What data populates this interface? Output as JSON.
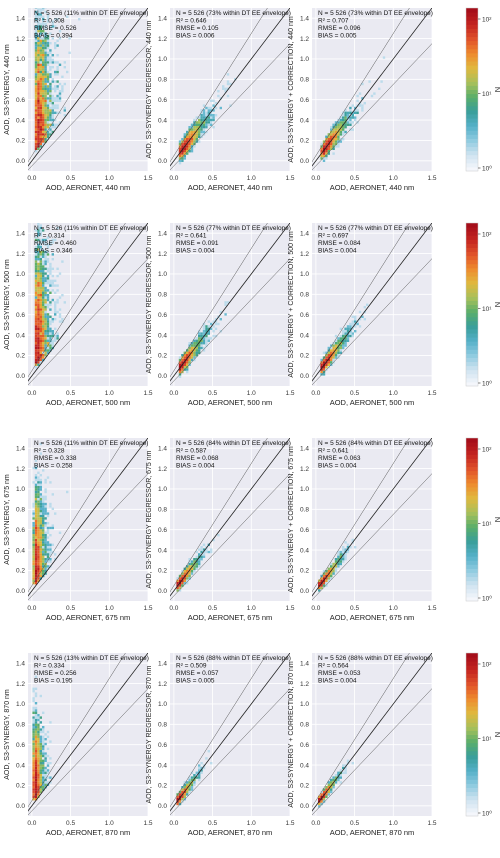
{
  "figure": {
    "colormap": [
      "#f4f6fb",
      "#cfe3f0",
      "#8fcbe0",
      "#55b0c8",
      "#3a9e9a",
      "#5aae6a",
      "#a9c05a",
      "#e0b83e",
      "#ee8a2e",
      "#e0522a",
      "#c42420",
      "#a50e1a"
    ],
    "grid_on": true,
    "plot_bg": "#eaeaf2",
    "colorbar": {
      "label": "N",
      "ticks": [
        "10⁰",
        "10¹",
        "10²"
      ]
    }
  },
  "chart_data": [
    {
      "type": "scatter",
      "row": 0,
      "col": 0,
      "xlabel": "AOD, AERONET, 440 nm",
      "ylabel": "AOD, S3-SYNERGY, 440 nm",
      "stats": [
        "N = 5 526 (11% within DT EE envelope)",
        "R² = 0.308",
        "RMSE = 0.526",
        "BIAS = 0.394"
      ],
      "xlim": [
        -0.05,
        1.5
      ],
      "ylim": [
        -0.1,
        1.5
      ],
      "xticks": [
        0.0,
        0.5,
        1.0,
        1.5
      ],
      "yticks": [
        0.0,
        0.2,
        0.4,
        0.6,
        0.8,
        1.0,
        1.2,
        1.4
      ],
      "cloud": {
        "mx": 0.08,
        "sx": 0.07,
        "slope": 3.0,
        "base": 0.2,
        "sy": 0.35
      }
    },
    {
      "type": "scatter",
      "row": 0,
      "col": 1,
      "xlabel": "AOD, AERONET, 440 nm",
      "ylabel": "AOD, S3-SYNERGY REGRESSOR, 440 nm",
      "stats": [
        "N = 5 526 (73% within DT EE envelope)",
        "R² = 0.646",
        "RMSE = 0.105",
        "BIAS = 0.006"
      ],
      "xlim": [
        -0.05,
        1.5
      ],
      "ylim": [
        -0.1,
        1.5
      ],
      "xticks": [
        0.0,
        0.5,
        1.0,
        1.5
      ],
      "yticks": [
        0.0,
        0.2,
        0.4,
        0.6,
        0.8,
        1.0,
        1.2,
        1.4
      ],
      "cloud": {
        "mx": 0.12,
        "sx": 0.1,
        "slope": 0.95,
        "base": 0.01,
        "sy": 0.06
      }
    },
    {
      "type": "scatter",
      "row": 0,
      "col": 2,
      "xlabel": "AOD, AERONET, 440 nm",
      "ylabel": "AOD, S3-SYNERGY + CORRECTION, 440 nm",
      "stats": [
        "N = 5 526 (73% within DT EE envelope)",
        "R² = 0.707",
        "RMSE = 0.096",
        "BIAS = 0.005"
      ],
      "xlim": [
        -0.05,
        1.5
      ],
      "ylim": [
        -0.1,
        1.5
      ],
      "xticks": [
        0.0,
        0.5,
        1.0,
        1.5
      ],
      "yticks": [
        0.0,
        0.2,
        0.4,
        0.6,
        0.8,
        1.0,
        1.2,
        1.4
      ],
      "cloud": {
        "mx": 0.12,
        "sx": 0.1,
        "slope": 0.97,
        "base": 0.01,
        "sy": 0.055
      }
    },
    {
      "type": "scatter",
      "row": 1,
      "col": 0,
      "xlabel": "AOD, AERONET, 500 nm",
      "ylabel": "AOD, S3-SYNERGY, 500 nm",
      "stats": [
        "N = 5 526 (11% within DT EE envelope)",
        "R² = 0.314",
        "RMSE = 0.460",
        "BIAS = 0.346"
      ],
      "xlim": [
        -0.05,
        1.5
      ],
      "ylim": [
        -0.1,
        1.5
      ],
      "xticks": [
        0.0,
        0.5,
        1.0,
        1.5
      ],
      "yticks": [
        0.0,
        0.2,
        0.4,
        0.6,
        0.8,
        1.0,
        1.2,
        1.4
      ],
      "cloud": {
        "mx": 0.07,
        "sx": 0.06,
        "slope": 3.0,
        "base": 0.18,
        "sy": 0.32
      }
    },
    {
      "type": "scatter",
      "row": 1,
      "col": 1,
      "xlabel": "AOD, AERONET, 500 nm",
      "ylabel": "AOD, S3-SYNERGY REGRESSOR, 500 nm",
      "stats": [
        "N = 5 526 (77% within DT EE envelope)",
        "R² = 0.641",
        "RMSE = 0.091",
        "BIAS = 0.004"
      ],
      "xlim": [
        -0.05,
        1.5
      ],
      "ylim": [
        -0.1,
        1.5
      ],
      "xticks": [
        0.0,
        0.5,
        1.0,
        1.5
      ],
      "yticks": [
        0.0,
        0.2,
        0.4,
        0.6,
        0.8,
        1.0,
        1.2,
        1.4
      ],
      "cloud": {
        "mx": 0.1,
        "sx": 0.09,
        "slope": 0.95,
        "base": 0.01,
        "sy": 0.05
      }
    },
    {
      "type": "scatter",
      "row": 1,
      "col": 2,
      "xlabel": "AOD, AERONET, 500 nm",
      "ylabel": "AOD, S3-SYNERGY + CORRECTION, 500 nm",
      "stats": [
        "N = 5 526 (77% within DT EE envelope)",
        "R² = 0.697",
        "RMSE = 0.084",
        "BIAS = 0.004"
      ],
      "xlim": [
        -0.05,
        1.5
      ],
      "ylim": [
        -0.1,
        1.5
      ],
      "xticks": [
        0.0,
        0.5,
        1.0,
        1.5
      ],
      "yticks": [
        0.0,
        0.2,
        0.4,
        0.6,
        0.8,
        1.0,
        1.2,
        1.4
      ],
      "cloud": {
        "mx": 0.1,
        "sx": 0.09,
        "slope": 0.97,
        "base": 0.01,
        "sy": 0.045
      }
    },
    {
      "type": "scatter",
      "row": 2,
      "col": 0,
      "xlabel": "AOD, AERONET, 675 nm",
      "ylabel": "AOD, S3-SYNERGY, 675 nm",
      "stats": [
        "N = 5 526 (11% within DT EE envelope)",
        "R² = 0.328",
        "RMSE = 0.338",
        "BIAS = 0.258"
      ],
      "xlim": [
        -0.05,
        1.5
      ],
      "ylim": [
        -0.1,
        1.5
      ],
      "xticks": [
        0.0,
        0.5,
        1.0,
        1.5
      ],
      "yticks": [
        0.0,
        0.2,
        0.4,
        0.6,
        0.8,
        1.0,
        1.2,
        1.4
      ],
      "cloud": {
        "mx": 0.05,
        "sx": 0.045,
        "slope": 3.0,
        "base": 0.12,
        "sy": 0.24
      }
    },
    {
      "type": "scatter",
      "row": 2,
      "col": 1,
      "xlabel": "AOD, AERONET, 675 nm",
      "ylabel": "AOD, S3-SYNERGY REGRESSOR, 675 nm",
      "stats": [
        "N = 5 526 (84% within DT EE envelope)",
        "R² = 0.587",
        "RMSE = 0.068",
        "BIAS = 0.004"
      ],
      "xlim": [
        -0.05,
        1.5
      ],
      "ylim": [
        -0.1,
        1.5
      ],
      "xticks": [
        0.0,
        0.5,
        1.0,
        1.5
      ],
      "yticks": [
        0.0,
        0.2,
        0.4,
        0.6,
        0.8,
        1.0,
        1.2,
        1.4
      ],
      "cloud": {
        "mx": 0.07,
        "sx": 0.07,
        "slope": 0.95,
        "base": 0.01,
        "sy": 0.04
      }
    },
    {
      "type": "scatter",
      "row": 2,
      "col": 2,
      "xlabel": "AOD, AERONET, 675 nm",
      "ylabel": "AOD, S3-SYNERGY + CORRECTION, 675 nm",
      "stats": [
        "N = 5 526 (84% within DT EE envelope)",
        "R² = 0.641",
        "RMSE = 0.063",
        "BIAS = 0.004"
      ],
      "xlim": [
        -0.05,
        1.5
      ],
      "ylim": [
        -0.1,
        1.5
      ],
      "xticks": [
        0.0,
        0.5,
        1.0,
        1.5
      ],
      "yticks": [
        0.0,
        0.2,
        0.4,
        0.6,
        0.8,
        1.0,
        1.2,
        1.4
      ],
      "cloud": {
        "mx": 0.07,
        "sx": 0.07,
        "slope": 0.97,
        "base": 0.01,
        "sy": 0.035
      }
    },
    {
      "type": "scatter",
      "row": 3,
      "col": 0,
      "xlabel": "AOD, AERONET, 870 nm",
      "ylabel": "AOD, S3-SYNERGY, 870 nm",
      "stats": [
        "N = 5 526 (13% within DT EE envelope)",
        "R² = 0.334",
        "RMSE = 0.256",
        "BIAS = 0.195"
      ],
      "xlim": [
        -0.05,
        1.5
      ],
      "ylim": [
        -0.1,
        1.5
      ],
      "xticks": [
        0.0,
        0.5,
        1.0,
        1.5
      ],
      "yticks": [
        0.0,
        0.2,
        0.4,
        0.6,
        0.8,
        1.0,
        1.2,
        1.4
      ],
      "cloud": {
        "mx": 0.04,
        "sx": 0.035,
        "slope": 3.0,
        "base": 0.1,
        "sy": 0.2
      }
    },
    {
      "type": "scatter",
      "row": 3,
      "col": 1,
      "xlabel": "AOD, AERONET, 870 nm",
      "ylabel": "AOD, S3-SYNERGY REGRESSOR, 870 nm",
      "stats": [
        "N = 5 526 (88% within DT EE envelope)",
        "R² = 0.509",
        "RMSE = 0.057",
        "BIAS = 0.005"
      ],
      "xlim": [
        -0.05,
        1.5
      ],
      "ylim": [
        -0.1,
        1.5
      ],
      "xticks": [
        0.0,
        0.5,
        1.0,
        1.5
      ],
      "yticks": [
        0.0,
        0.2,
        0.4,
        0.6,
        0.8,
        1.0,
        1.2,
        1.4
      ],
      "cloud": {
        "mx": 0.06,
        "sx": 0.06,
        "slope": 0.95,
        "base": 0.01,
        "sy": 0.035
      }
    },
    {
      "type": "scatter",
      "row": 3,
      "col": 2,
      "xlabel": "AOD, AERONET, 870 nm",
      "ylabel": "AOD, S3-SYNERGY + CORRECTION, 870 nm",
      "stats": [
        "N = 5 526 (88% within DT EE envelope)",
        "R² = 0.564",
        "RMSE = 0.053",
        "BIAS = 0.004"
      ],
      "xlim": [
        -0.05,
        1.5
      ],
      "ylim": [
        -0.1,
        1.5
      ],
      "xticks": [
        0.0,
        0.5,
        1.0,
        1.5
      ],
      "yticks": [
        0.0,
        0.2,
        0.4,
        0.6,
        0.8,
        1.0,
        1.2,
        1.4
      ],
      "cloud": {
        "mx": 0.06,
        "sx": 0.06,
        "slope": 0.97,
        "base": 0.01,
        "sy": 0.03
      }
    }
  ]
}
